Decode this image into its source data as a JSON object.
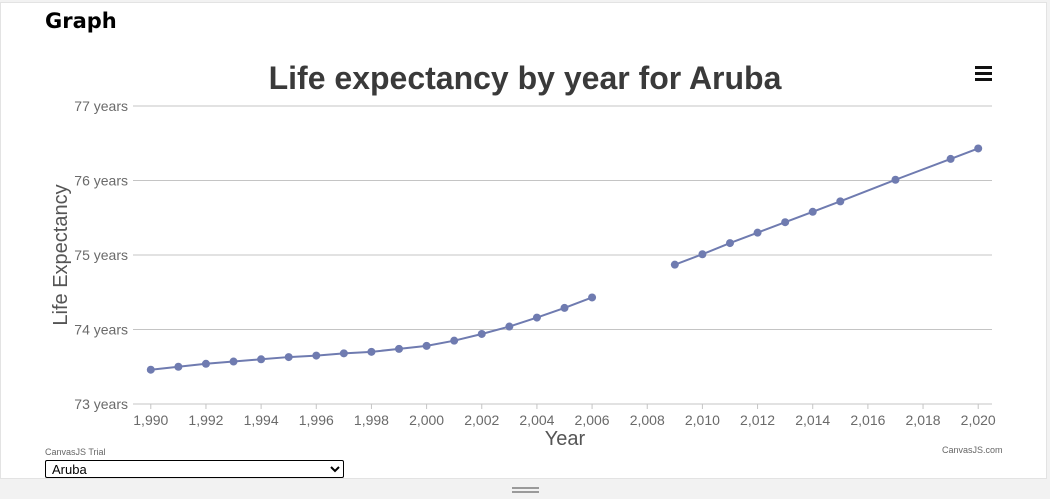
{
  "page": {
    "heading": "Graph"
  },
  "chart_data": {
    "type": "line",
    "title": "Life expectancy by year for Aruba",
    "xlabel": "Year",
    "ylabel": "Life Expectancy",
    "xlim": [
      1989.5,
      2020.5
    ],
    "ylim": [
      73,
      77
    ],
    "x_ticks": [
      "1,990",
      "1,992",
      "1,994",
      "1,996",
      "1,998",
      "2,000",
      "2,002",
      "2,004",
      "2,006",
      "2,008",
      "2,010",
      "2,012",
      "2,014",
      "2,016",
      "2,018",
      "2,020"
    ],
    "y_ticks": [
      "73 years",
      "74 years",
      "75 years",
      "76 years",
      "77 years"
    ],
    "grid": "horizontal",
    "series": [
      {
        "color": "#6f7bb0",
        "segments": [
          {
            "x": [
              1990,
              1991,
              1992,
              1993,
              1994,
              1995,
              1996,
              1997,
              1998,
              1999,
              2000,
              2001,
              2002,
              2003,
              2004,
              2005,
              2006
            ],
            "y": [
              73.46,
              73.5,
              73.54,
              73.57,
              73.6,
              73.63,
              73.65,
              73.68,
              73.7,
              73.74,
              73.78,
              73.85,
              73.94,
              74.04,
              74.16,
              74.29,
              74.43
            ]
          },
          {
            "x": [
              2009,
              2010,
              2011,
              2012,
              2013,
              2014,
              2015,
              2017,
              2019,
              2020
            ],
            "y": [
              74.87,
              75.01,
              75.16,
              75.3,
              75.44,
              75.58,
              75.72,
              76.01,
              76.29,
              76.43
            ]
          }
        ]
      }
    ]
  },
  "chart_menu": {
    "icon": "hamburger-icon"
  },
  "footer": {
    "trial_text": "CanvasJS Trial",
    "credit_text": "CanvasJS.com",
    "country_select": {
      "selected": "Aruba"
    }
  }
}
